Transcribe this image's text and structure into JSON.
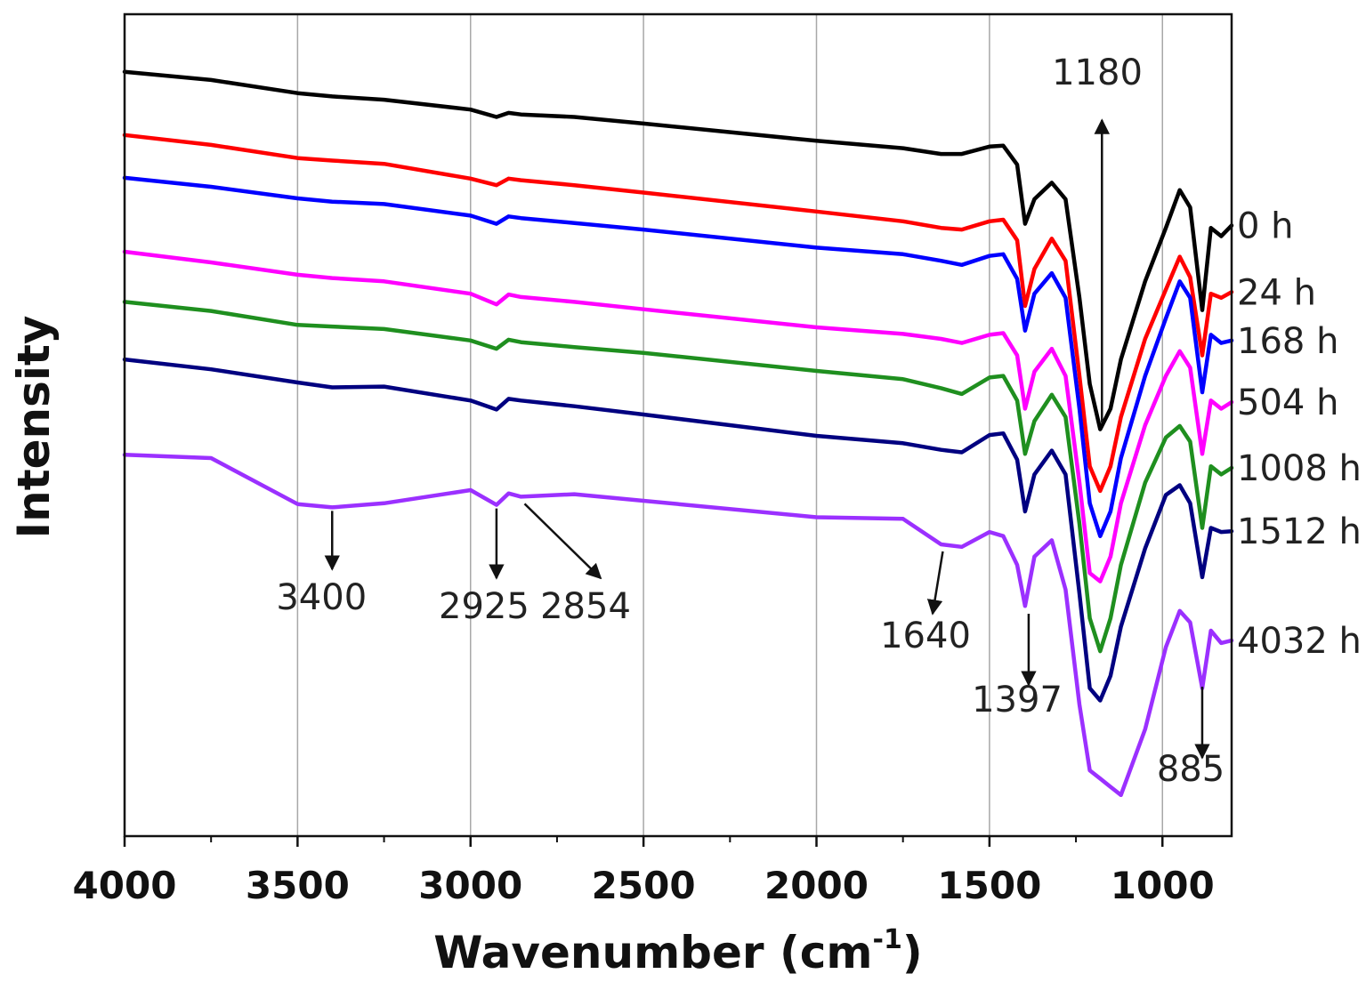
{
  "chart_data": {
    "type": "line",
    "xlabel": "Wavenumber (cm",
    "xlabel_sup": "-1",
    "xlabel_close": ")",
    "ylabel": "Intensity",
    "xlim": [
      4000,
      800
    ],
    "x_reversed": true,
    "ylim": [
      0,
      100
    ],
    "y_ticks_shown": false,
    "grid": "vertical",
    "x_ticks": [
      4000,
      3500,
      3000,
      2500,
      2000,
      1500,
      1000
    ],
    "x_tick_labels": [
      "4000",
      "3500",
      "3000",
      "2500",
      "2000",
      "1500",
      "1000"
    ],
    "series_x": [
      4000,
      3750,
      3500,
      3400,
      3250,
      3000,
      2925,
      2890,
      2854,
      2700,
      2500,
      2000,
      1750,
      1640,
      1580,
      1500,
      1460,
      1420,
      1397,
      1370,
      1320,
      1280,
      1240,
      1210,
      1180,
      1150,
      1120,
      1050,
      990,
      950,
      920,
      885,
      860,
      830,
      800
    ],
    "series": [
      {
        "name": "0 h",
        "color": "#000000",
        "label": "0 h",
        "y": [
          93.0,
          92.0,
          90.4,
          90.0,
          89.6,
          88.4,
          87.5,
          88.0,
          87.8,
          87.5,
          86.7,
          84.6,
          83.7,
          83.0,
          83.0,
          83.9,
          84.0,
          81.7,
          74.5,
          77.5,
          79.5,
          77.5,
          65.5,
          55.0,
          49.5,
          52.0,
          58.0,
          67.5,
          74.0,
          78.6,
          76.5,
          64.0,
          74.0,
          73.0,
          74.3
        ]
      },
      {
        "name": "24 h",
        "color": "#ff0000",
        "label": "24 h",
        "y": [
          85.3,
          84.1,
          82.5,
          82.2,
          81.8,
          80.0,
          79.2,
          80.0,
          79.8,
          79.2,
          78.3,
          76.0,
          74.8,
          74.0,
          73.8,
          74.8,
          75.0,
          72.5,
          64.5,
          69.0,
          72.7,
          70.0,
          56.0,
          45.0,
          42.0,
          45.0,
          51.0,
          60.5,
          66.5,
          70.5,
          68.0,
          58.5,
          66.0,
          65.5,
          66.2
        ]
      },
      {
        "name": "168 h",
        "color": "#0000ff",
        "label": "168 h",
        "y": [
          80.1,
          79.0,
          77.6,
          77.2,
          76.9,
          75.5,
          74.5,
          75.4,
          75.2,
          74.6,
          73.8,
          71.6,
          70.8,
          70.0,
          69.5,
          70.6,
          70.8,
          67.8,
          61.5,
          66.0,
          68.5,
          65.5,
          52.0,
          40.5,
          36.5,
          39.5,
          46.0,
          56.0,
          63.0,
          67.5,
          65.5,
          54.0,
          61.0,
          60.0,
          60.3
        ]
      },
      {
        "name": "504 h",
        "color": "#ff00ff",
        "label": "504 h",
        "y": [
          71.1,
          69.8,
          68.3,
          67.9,
          67.5,
          66.0,
          64.7,
          65.9,
          65.6,
          65.0,
          64.1,
          61.9,
          61.1,
          60.5,
          60.0,
          61.0,
          61.2,
          58.5,
          52.0,
          56.5,
          59.3,
          56.0,
          43.0,
          32.0,
          31.0,
          34.0,
          40.5,
          50.0,
          56.0,
          59.0,
          57.0,
          46.5,
          53.0,
          52.0,
          52.8
        ]
      },
      {
        "name": "1008 h",
        "color": "#1f8f1f",
        "label": "1008 h",
        "y": [
          65.0,
          63.9,
          62.2,
          62.0,
          61.7,
          60.3,
          59.3,
          60.4,
          60.1,
          59.5,
          58.8,
          56.6,
          55.6,
          54.5,
          53.8,
          55.8,
          56.0,
          53.0,
          46.5,
          50.5,
          53.7,
          51.0,
          38.0,
          26.5,
          22.5,
          26.5,
          33.0,
          43.0,
          48.5,
          49.9,
          48.0,
          37.5,
          45.0,
          44.0,
          44.8
        ]
      },
      {
        "name": "1512 h",
        "color": "#000080",
        "label": "1512 h",
        "y": [
          58.0,
          56.8,
          55.2,
          54.6,
          54.7,
          53.0,
          51.9,
          53.2,
          53.0,
          52.3,
          51.3,
          48.7,
          47.8,
          47.0,
          46.7,
          48.8,
          49.0,
          45.8,
          39.5,
          44.0,
          46.9,
          44.0,
          29.5,
          18.0,
          16.5,
          19.5,
          25.5,
          35.0,
          41.5,
          42.7,
          40.5,
          31.5,
          37.5,
          37.0,
          37.1
        ]
      },
      {
        "name": "4032 h",
        "color": "#9b30ff",
        "label": "4032 h",
        "y": [
          46.4,
          46.0,
          40.4,
          40.0,
          40.5,
          42.1,
          40.3,
          41.7,
          41.3,
          41.6,
          40.8,
          38.8,
          38.6,
          35.5,
          35.2,
          37.0,
          36.5,
          33.0,
          28.0,
          34.0,
          36.0,
          30.0,
          16.0,
          8.0,
          7.0,
          6.0,
          5.0,
          13.0,
          23.0,
          27.4,
          26.0,
          18.0,
          25.0,
          23.5,
          23.8
        ]
      }
    ],
    "annotations": [
      {
        "label": "3400",
        "x": 3400
      },
      {
        "label": "2925",
        "x": 2925
      },
      {
        "label": "2854",
        "x": 2854
      },
      {
        "label": "1640",
        "x": 1640
      },
      {
        "label": "1397",
        "x": 1397
      },
      {
        "label": "1180",
        "x": 1180
      },
      {
        "label": "885",
        "x": 885
      }
    ]
  }
}
